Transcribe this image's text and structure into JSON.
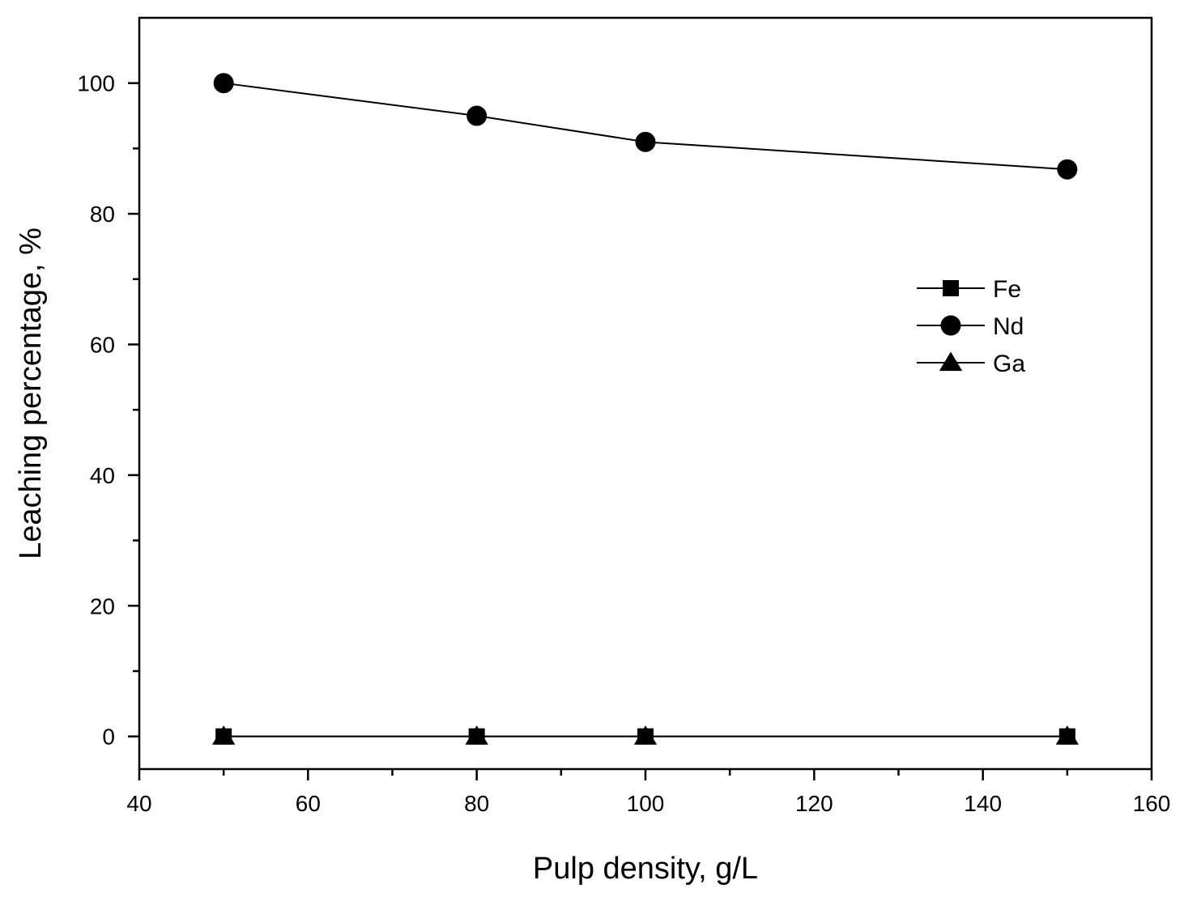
{
  "chart_data": {
    "type": "line",
    "title": "",
    "xlabel": "Pulp density, g/L",
    "ylabel": "Leaching percentage, %",
    "xlim": [
      40,
      160
    ],
    "ylim": [
      -5,
      110
    ],
    "x_ticks": [
      40,
      60,
      80,
      100,
      120,
      140,
      160
    ],
    "y_ticks": [
      0,
      20,
      40,
      60,
      80,
      100
    ],
    "x_tick_labels": [
      "40",
      "60",
      "80",
      "100",
      "120",
      "140",
      "160"
    ],
    "y_tick_labels": [
      "0",
      "20",
      "40",
      "60",
      "80",
      "100"
    ],
    "grid": false,
    "legend_position": "right",
    "x": [
      50,
      80,
      100,
      150
    ],
    "series": [
      {
        "name": "Fe",
        "marker": "square",
        "values": [
          0,
          0,
          0,
          0
        ]
      },
      {
        "name": "Nd",
        "marker": "circle",
        "values": [
          100,
          95,
          91,
          86.8
        ]
      },
      {
        "name": "Ga",
        "marker": "triangle",
        "values": [
          0,
          0,
          0,
          0
        ]
      }
    ],
    "colors": {
      "line": "#000000",
      "marker": "#000000",
      "background": "#ffffff"
    }
  }
}
